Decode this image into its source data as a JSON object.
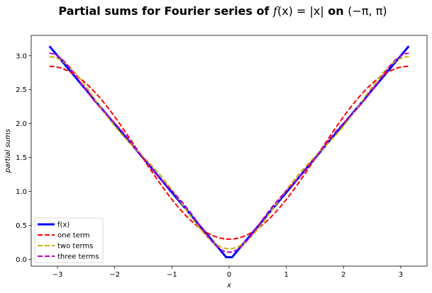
{
  "chart_data": {
    "type": "line",
    "title_prefix": "Partial sums for Fourier series of ",
    "title_math_f": "f",
    "title_math_x": "(x) = |x|",
    "title_on": " on ",
    "title_interval": "(−π, π)",
    "title": "Partial sums for Fourier series of f(x) = |x| on (−π, π)",
    "xlabel": "x",
    "ylabel": "partial sums",
    "xlim": [
      -3.46,
      3.46
    ],
    "ylim": [
      -0.1,
      3.3
    ],
    "x_ticks": [
      -3,
      -2,
      -1,
      0,
      1,
      2,
      3
    ],
    "x_tick_labels": [
      "−3",
      "−2",
      "−1",
      "0",
      "1",
      "2",
      "3"
    ],
    "y_ticks": [
      0.0,
      0.5,
      1.0,
      1.5,
      2.0,
      2.5,
      3.0
    ],
    "y_tick_labels": [
      "0.0",
      "0.5",
      "1.0",
      "1.5",
      "2.0",
      "2.5",
      "3.0"
    ],
    "grid": false,
    "legend_position": "lower-left",
    "x_range": [
      -3.14159,
      3.14159
    ],
    "series": [
      {
        "name": "f(x)",
        "color": "#0000ff",
        "style": "solid",
        "terms": 0,
        "x": [
          -3.14159,
          -0.05,
          0.05,
          3.14159
        ],
        "values": [
          3.14159,
          0.03,
          0.03,
          3.14159
        ]
      },
      {
        "name": "one term",
        "color": "#ff0000",
        "style": "dashed",
        "terms": 1
      },
      {
        "name": "two terms",
        "color": "#c8b400",
        "style": "dashed",
        "terms": 2
      },
      {
        "name": "three terms",
        "color": "#bf00bf",
        "style": "dashed",
        "terms": 3
      }
    ]
  }
}
